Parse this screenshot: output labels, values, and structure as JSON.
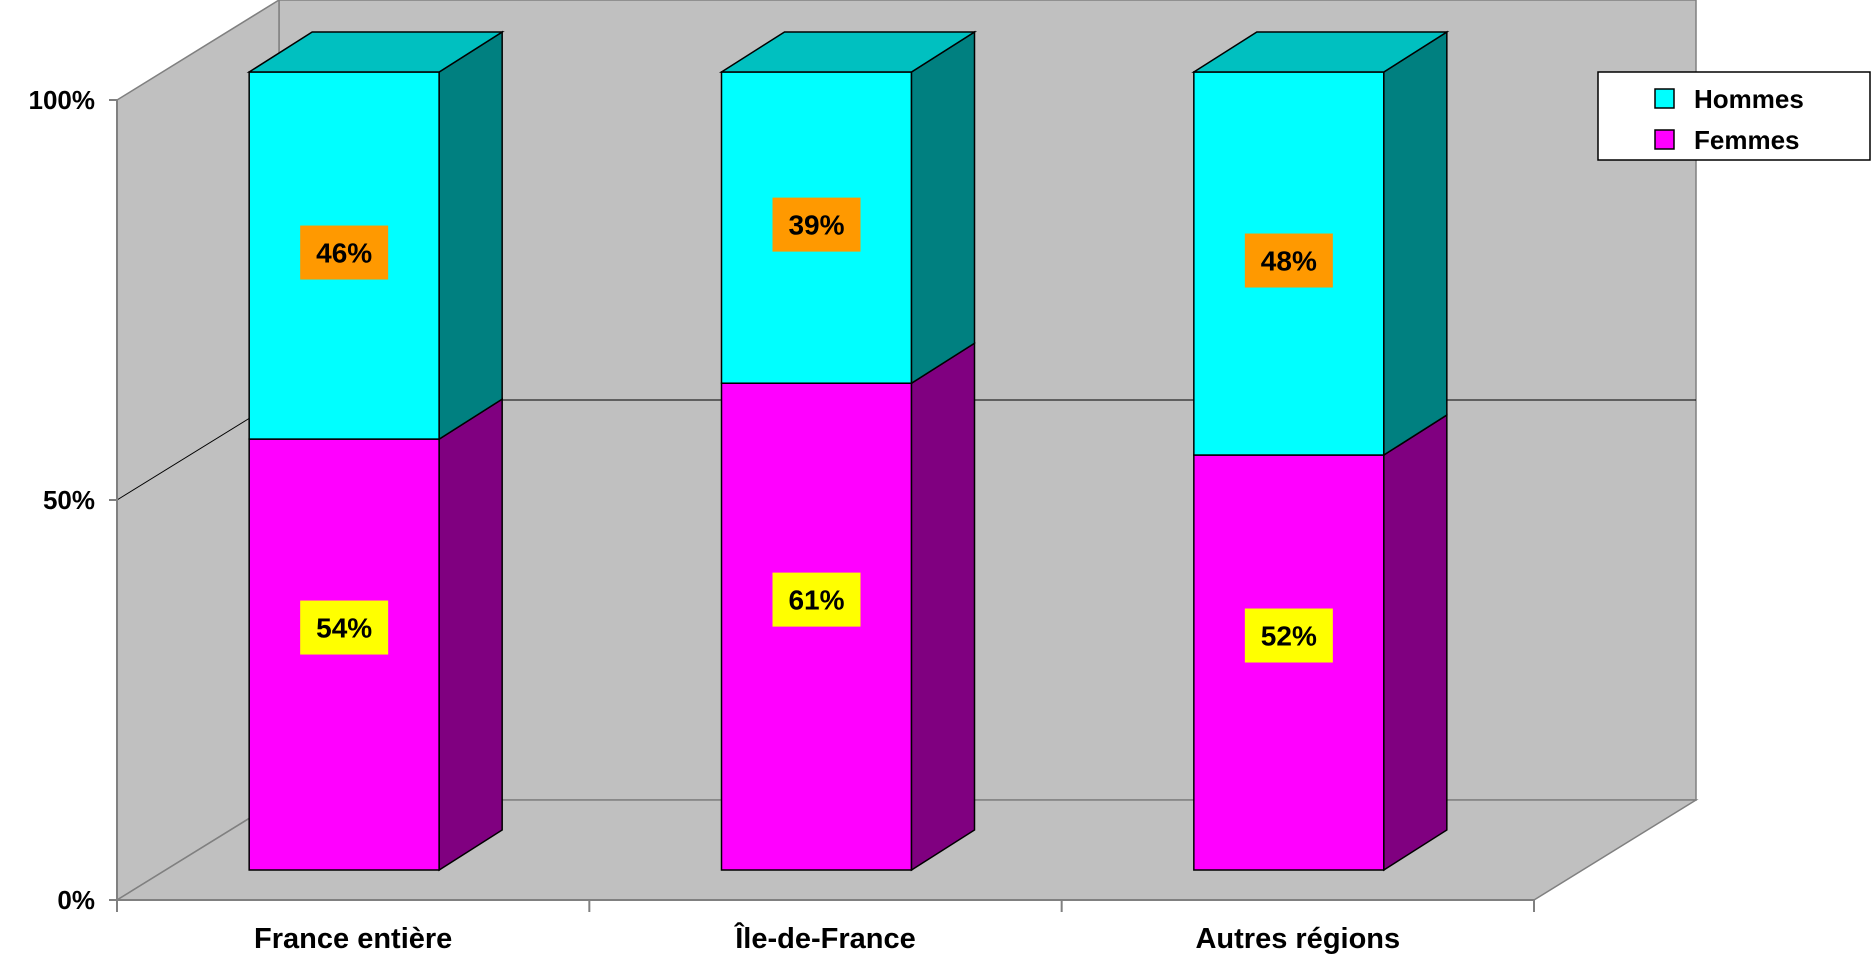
{
  "chart_data": {
    "type": "bar",
    "stacked": true,
    "percent_stacked": true,
    "three_d": true,
    "categories": [
      "France entière",
      "Île-de-France",
      "Autres régions"
    ],
    "series": [
      {
        "name": "Femmes",
        "values": [
          54,
          61,
          52
        ],
        "labels": [
          "54%",
          "61%",
          "52%"
        ]
      },
      {
        "name": "Hommes",
        "values": [
          46,
          39,
          48
        ],
        "labels": [
          "46%",
          "39%",
          "48%"
        ]
      }
    ],
    "yticks": [
      "0%",
      "50%",
      "100%"
    ],
    "ylim": [
      0,
      100
    ],
    "grid": true,
    "legend_position": "top-right"
  },
  "colors": {
    "Hommes": {
      "front": "#00FFFF",
      "side": "#008080",
      "top": "#00C0C0"
    },
    "Femmes": {
      "front": "#FF00FF",
      "side": "#800080",
      "top": "#C000C0"
    },
    "wall": "#C0C0C0",
    "floor": "#C0C0C0",
    "gridline": "#000000",
    "label_bg_Hommes": "#FF9900",
    "label_bg_Femmes": "#FFFF00"
  }
}
